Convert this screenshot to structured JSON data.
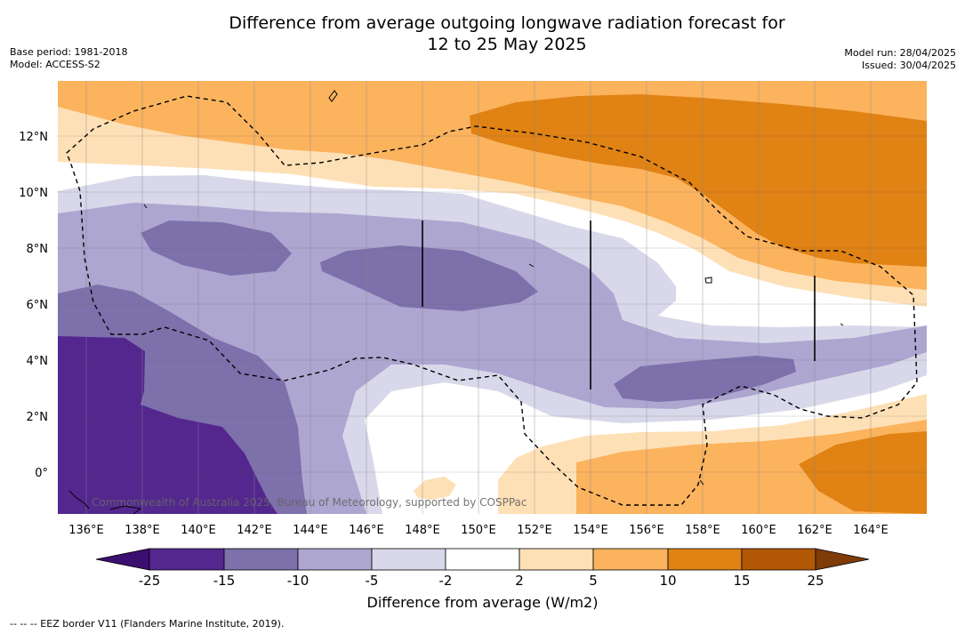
{
  "title_line1": "Difference from average outgoing longwave radiation forecast for",
  "title_line2": "12 to 25 May 2025",
  "base_period": "Base period: 1981-2018",
  "model": "Model: ACCESS-S2",
  "model_run": "Model run: 28/04/2025",
  "issued": "Issued: 30/04/2025",
  "copyright": "Commonwealth of Australia 2025, Bureau of Meteorology, supported by COSPPac",
  "colorbar_title": "Difference from average (W/m2)",
  "footnote": "--  --  -- EEZ border V11 (Flanders Marine Institute, 2019).",
  "lon_ticks": [
    "136°E",
    "138°E",
    "140°E",
    "142°E",
    "144°E",
    "146°E",
    "148°E",
    "150°E",
    "152°E",
    "154°E",
    "156°E",
    "158°E",
    "160°E",
    "162°E",
    "164°E"
  ],
  "lat_ticks": [
    "12°N",
    "10°N",
    "8°N",
    "6°N",
    "4°N",
    "2°N",
    "0°"
  ],
  "colorbar_levels": [
    "-25",
    "-15",
    "-10",
    "-5",
    "-2",
    "2",
    "5",
    "10",
    "15",
    "25"
  ],
  "colors": {
    "lt_minus25": "#3b0f6f",
    "m25_m15": "#54278f",
    "m15_m10": "#7d70ab",
    "m10_m5": "#ada6d0",
    "m5_m2": "#d8d8ea",
    "m2_2": "#ffffff",
    "p2_p5": "#fee0b6",
    "p5_p10": "#fbb35e",
    "p10_p15": "#e08214",
    "p15_p25": "#b35806",
    "gt_25": "#7f3b08"
  }
}
